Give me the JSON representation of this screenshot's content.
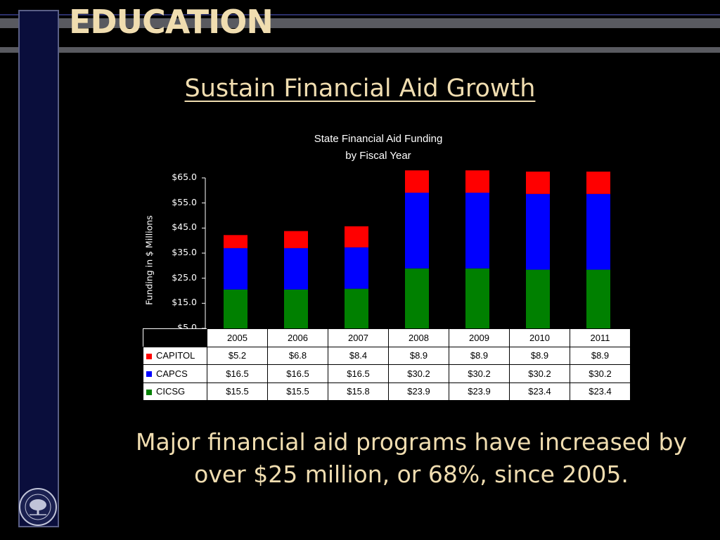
{
  "header": {
    "title": "EDUCATION"
  },
  "slide": {
    "subtitle": "Sustain Financial Aid Growth",
    "caption_line1": "Major financial aid programs have increased by",
    "caption_line2": "over $25 million, or 68%, since 2005."
  },
  "colors": {
    "background": "#000000",
    "accent_text": "#f0ddb0",
    "CAPITOL": "#ff0000",
    "CAPCS": "#0000ff",
    "CICSG": "#008000"
  },
  "chart_data": {
    "type": "bar",
    "stacked": true,
    "title_line1": "State Financial Aid Funding",
    "title_line2": "by Fiscal Year",
    "xlabel": "",
    "ylabel": "Funding in $ Millions",
    "ylim": [
      5,
      65
    ],
    "yticks": [
      "$65.0",
      "$55.0",
      "$45.0",
      "$35.0",
      "$25.0",
      "$15.0",
      "$5.0"
    ],
    "categories": [
      "2005",
      "2006",
      "2007",
      "2008",
      "2009",
      "2010",
      "2011"
    ],
    "series": [
      {
        "name": "CAPITOL",
        "values": [
          5.2,
          6.8,
          8.4,
          8.9,
          8.9,
          8.9,
          8.9
        ],
        "labels": [
          "$5.2",
          "$6.8",
          "$8.4",
          "$8.9",
          "$8.9",
          "$8.9",
          "$8.9"
        ]
      },
      {
        "name": "CAPCS",
        "values": [
          16.5,
          16.5,
          16.5,
          30.2,
          30.2,
          30.2,
          30.2
        ],
        "labels": [
          "$16.5",
          "$16.5",
          "$16.5",
          "$30.2",
          "$30.2",
          "$30.2",
          "$30.2"
        ]
      },
      {
        "name": "CICSG",
        "values": [
          15.5,
          15.5,
          15.8,
          23.9,
          23.9,
          23.4,
          23.4
        ],
        "labels": [
          "$15.5",
          "$15.5",
          "$15.8",
          "$23.9",
          "$23.9",
          "$23.4",
          "$23.4"
        ]
      }
    ],
    "stack_order_bottom_to_top": [
      "CICSG",
      "CAPCS",
      "CAPITOL"
    ],
    "data_table": true,
    "grid": false
  }
}
